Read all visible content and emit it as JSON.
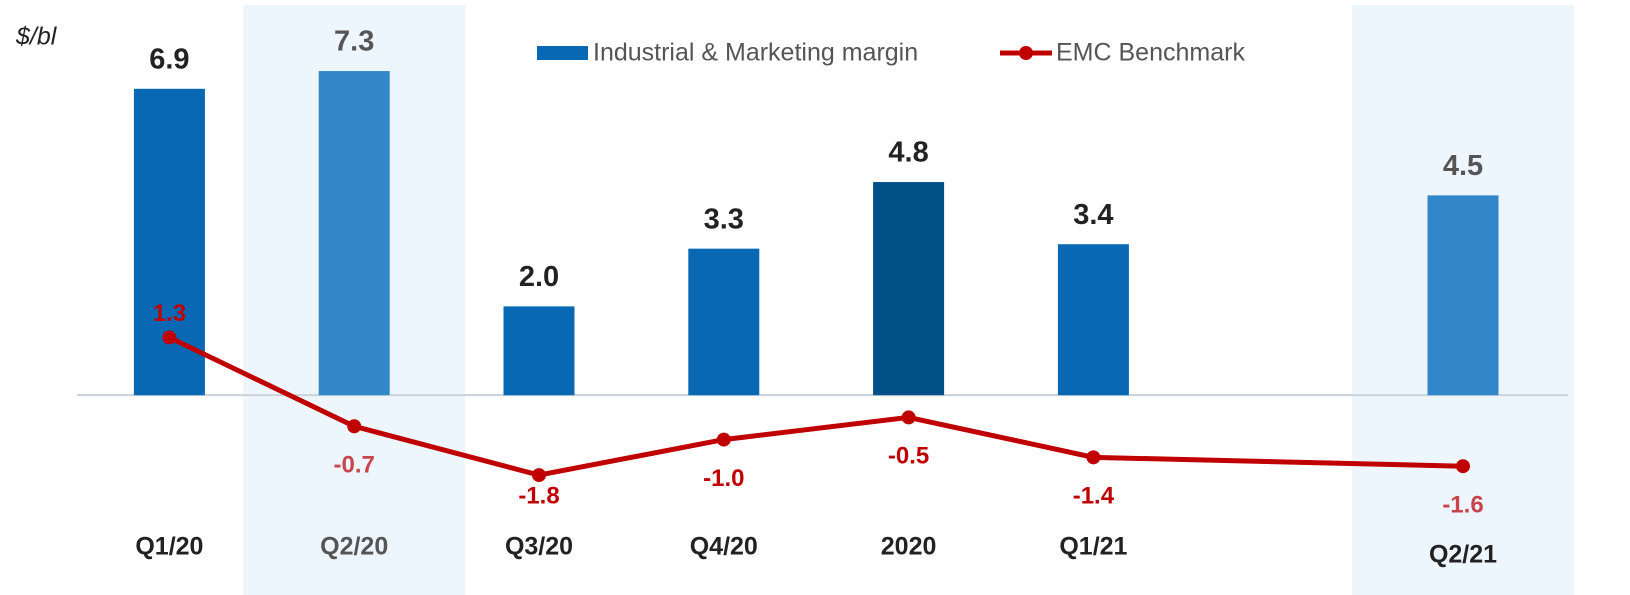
{
  "chart_data": {
    "type": "bar_line",
    "y_label": "$/bl",
    "categories": [
      "Q1/20",
      "Q2/20",
      "Q3/20",
      "Q4/20",
      "2020",
      "Q1/21",
      "Q2/21"
    ],
    "highlight": [
      1,
      6
    ],
    "ylim": [
      -4.5,
      8.9
    ],
    "series": [
      {
        "name": "Industrial & Marketing margin",
        "type": "bar",
        "color": "#0868b4",
        "colors": [
          "#0868b4",
          "#3287c8",
          "#0868b4",
          "#0868b4",
          "#034f88",
          "#0868b4",
          "#3287c8"
        ],
        "values": [
          6.9,
          7.3,
          2.0,
          3.3,
          4.8,
          3.4,
          4.5
        ],
        "value_labels": [
          "6.9",
          "7.3",
          "2.0",
          "3.3",
          "4.8",
          "3.4",
          "4.5"
        ]
      },
      {
        "name": "EMC Benchmark",
        "type": "line",
        "color": "#c00000",
        "values": [
          1.3,
          -0.7,
          -1.8,
          -1.0,
          -0.5,
          -1.4,
          -1.6
        ],
        "value_labels": [
          "1.3",
          "-0.7",
          "-1.8",
          "-1.0",
          "-0.5",
          "-1.4",
          "-1.6"
        ]
      }
    ]
  }
}
